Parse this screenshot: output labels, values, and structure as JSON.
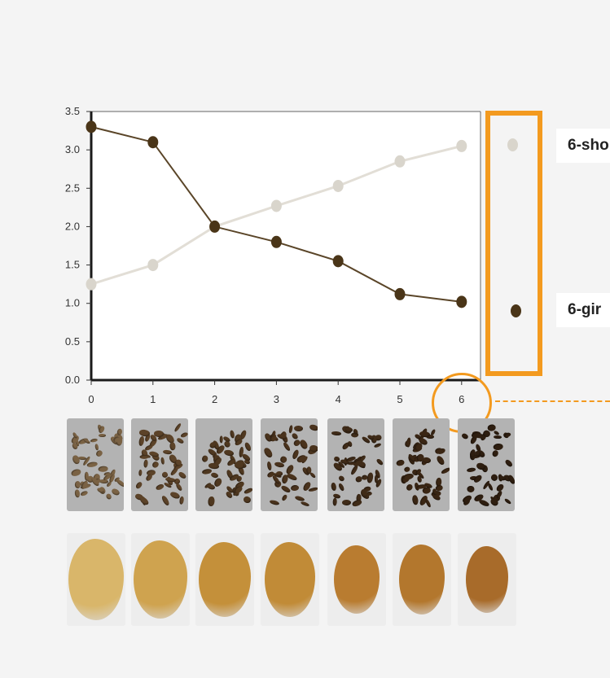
{
  "chart_data": {
    "type": "line",
    "x": [
      0,
      1,
      2,
      3,
      4,
      5,
      6
    ],
    "xticks": [
      "0",
      "1",
      "2",
      "3",
      "4",
      "5",
      "6"
    ],
    "yticks": [
      "0.0",
      "0.5",
      "1.0",
      "1.5",
      "2.0",
      "2.5",
      "3.0",
      "3.5"
    ],
    "ylim": [
      0,
      3.5
    ],
    "xlim": [
      0,
      6
    ],
    "grid": false,
    "legend_placement": "right",
    "series": [
      {
        "name": "6-sho",
        "color": "#d9d5cc",
        "values": [
          1.25,
          1.5,
          2.0,
          2.27,
          2.53,
          2.85,
          3.05
        ]
      },
      {
        "name": "6-gir",
        "color": "#4a3518",
        "values": [
          3.3,
          3.1,
          2.0,
          1.8,
          1.55,
          1.12,
          1.02
        ]
      }
    ]
  },
  "legend": {
    "border_color": "#f39a1f",
    "items": [
      {
        "label": "6-sho",
        "marker_color": "#d9d5cc"
      },
      {
        "label": "6-gir",
        "marker_color": "#4a3518"
      }
    ]
  },
  "highlight": {
    "x_value": 6,
    "color": "#f39a1f"
  },
  "samples": {
    "whole_beans": [
      {
        "x_value": 0,
        "tone": "#7a6244"
      },
      {
        "x_value": 1,
        "tone": "#5c4329"
      },
      {
        "x_value": 2,
        "tone": "#4f3820"
      },
      {
        "x_value": 3,
        "tone": "#4a331d"
      },
      {
        "x_value": 4,
        "tone": "#3f2b18"
      },
      {
        "x_value": 5,
        "tone": "#3a2614"
      },
      {
        "x_value": 6,
        "tone": "#2e1e10"
      }
    ],
    "powder": [
      {
        "x_value": 0,
        "tone": "#d9b66a"
      },
      {
        "x_value": 1,
        "tone": "#cfa34f"
      },
      {
        "x_value": 2,
        "tone": "#c4903a"
      },
      {
        "x_value": 3,
        "tone": "#c18b37"
      },
      {
        "x_value": 4,
        "tone": "#b97c30"
      },
      {
        "x_value": 5,
        "tone": "#b3772d"
      },
      {
        "x_value": 6,
        "tone": "#a86b2a"
      }
    ]
  }
}
